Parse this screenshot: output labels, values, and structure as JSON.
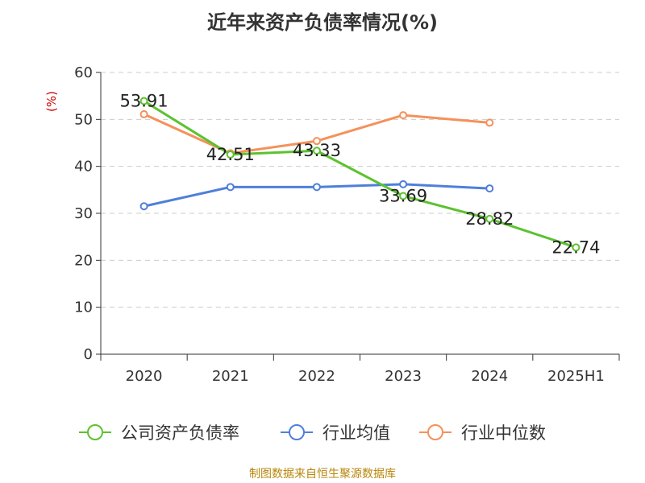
{
  "chart_data": {
    "type": "line",
    "title": "近年来资产负债率情况(%)",
    "ylabel": "(%)",
    "ylim": [
      0,
      60
    ],
    "yticks": [
      "0",
      "10",
      "20",
      "30",
      "40",
      "50",
      "60"
    ],
    "categories": [
      "2020",
      "2021",
      "2022",
      "2023",
      "2024",
      "2025H1"
    ],
    "grid": true,
    "legend_position": "bottom",
    "series": [
      {
        "name": "公司资产负债率",
        "color": "#5cc22f",
        "values": [
          53.91,
          42.51,
          43.33,
          33.69,
          28.82,
          22.74
        ],
        "labels": [
          "53.91",
          "42.51",
          "43.33",
          "33.69",
          "28.82",
          "22.74"
        ]
      },
      {
        "name": "行业均值",
        "color": "#4f7fdb",
        "values": [
          31.5,
          35.6,
          35.6,
          36.2,
          35.3,
          null
        ]
      },
      {
        "name": "行业中位数",
        "color": "#f5915a",
        "values": [
          51.1,
          42.8,
          45.4,
          50.9,
          49.3,
          null
        ]
      }
    ]
  },
  "footer": "制图数据来自恒生聚源数据库"
}
